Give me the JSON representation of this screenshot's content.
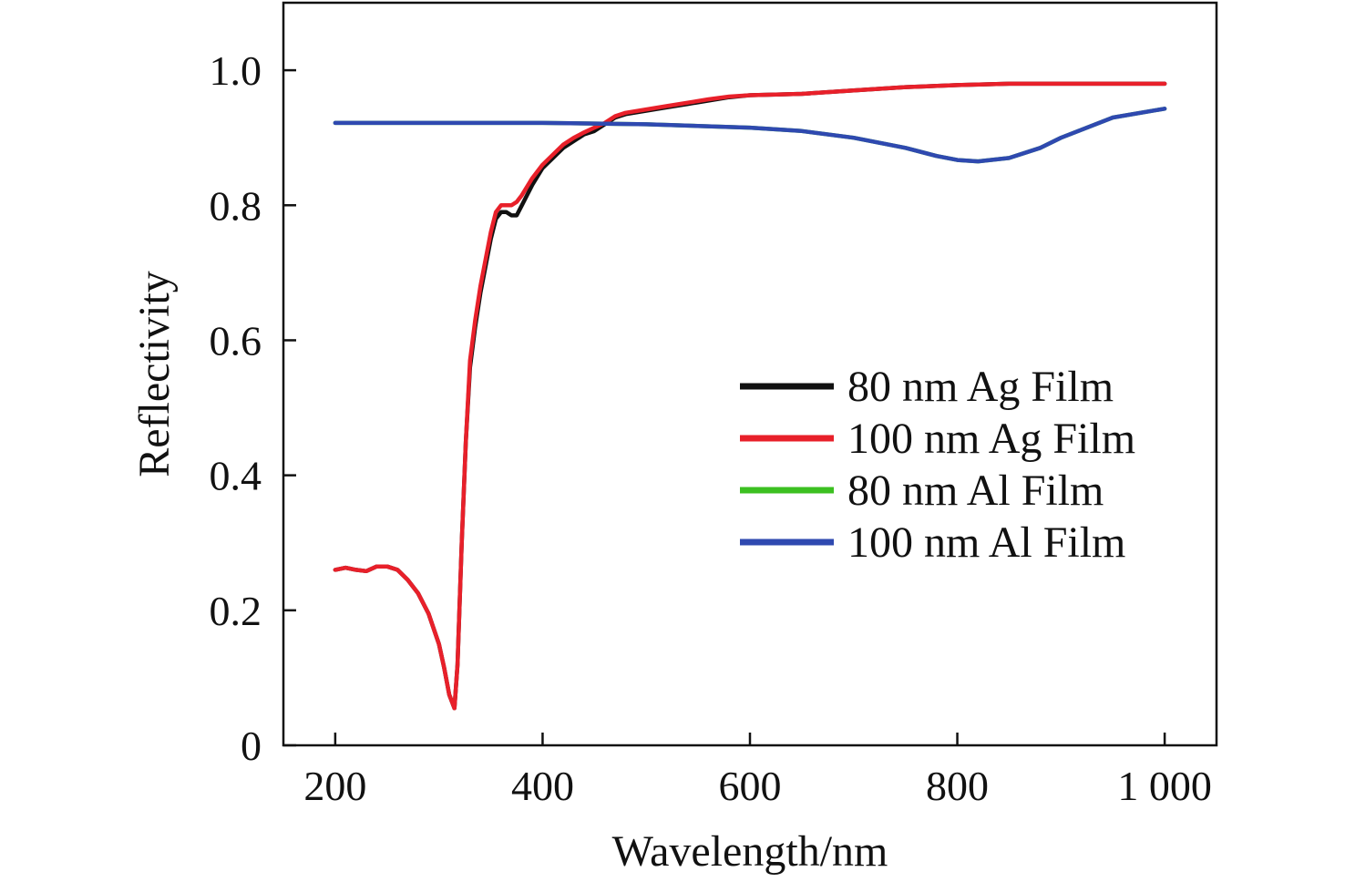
{
  "chart_data": {
    "type": "line",
    "title": "",
    "xlabel": "Wavelength/nm",
    "ylabel": "Reflectivity",
    "xlim": [
      150,
      1050
    ],
    "ylim": [
      0,
      1.1
    ],
    "xticks": [
      200,
      400,
      600,
      800,
      1000
    ],
    "xtick_labels": [
      "200",
      "400",
      "600",
      "800",
      "1 000"
    ],
    "yticks": [
      0,
      0.2,
      0.4,
      0.6,
      0.8,
      1.0
    ],
    "ytick_labels": [
      "0",
      "0.2",
      "0.4",
      "0.6",
      "0.8",
      "1.0"
    ],
    "grid": false,
    "legend_position": "center-right",
    "series": [
      {
        "name": "80 nm Ag Film",
        "color": "#111111",
        "x": [
          200,
          210,
          220,
          230,
          240,
          250,
          260,
          270,
          280,
          290,
          300,
          305,
          310,
          315,
          318,
          322,
          326,
          330,
          335,
          340,
          345,
          350,
          355,
          360,
          365,
          370,
          375,
          380,
          390,
          400,
          410,
          420,
          430,
          440,
          450,
          460,
          470,
          480,
          500,
          520,
          540,
          560,
          580,
          600,
          650,
          700,
          750,
          800,
          850,
          900,
          950,
          1000
        ],
        "y": [
          0.26,
          0.263,
          0.26,
          0.258,
          0.265,
          0.265,
          0.26,
          0.245,
          0.225,
          0.195,
          0.15,
          0.115,
          0.075,
          0.055,
          0.12,
          0.3,
          0.45,
          0.56,
          0.62,
          0.67,
          0.71,
          0.75,
          0.78,
          0.79,
          0.79,
          0.785,
          0.785,
          0.8,
          0.83,
          0.855,
          0.87,
          0.885,
          0.895,
          0.905,
          0.91,
          0.92,
          0.93,
          0.935,
          0.94,
          0.945,
          0.95,
          0.955,
          0.96,
          0.963,
          0.965,
          0.97,
          0.975,
          0.978,
          0.98,
          0.98,
          0.98,
          0.98
        ]
      },
      {
        "name": "100 nm Ag Film",
        "color": "#e8202a",
        "x": [
          200,
          210,
          220,
          230,
          240,
          250,
          260,
          270,
          280,
          290,
          300,
          305,
          310,
          315,
          318,
          322,
          326,
          330,
          335,
          340,
          345,
          350,
          355,
          360,
          365,
          370,
          375,
          380,
          390,
          400,
          410,
          420,
          430,
          440,
          450,
          460,
          470,
          480,
          500,
          520,
          540,
          560,
          580,
          600,
          650,
          700,
          750,
          800,
          850,
          900,
          950,
          1000
        ],
        "y": [
          0.26,
          0.263,
          0.26,
          0.258,
          0.265,
          0.265,
          0.26,
          0.245,
          0.225,
          0.195,
          0.15,
          0.115,
          0.075,
          0.055,
          0.12,
          0.3,
          0.45,
          0.57,
          0.63,
          0.68,
          0.72,
          0.76,
          0.79,
          0.8,
          0.8,
          0.8,
          0.805,
          0.815,
          0.84,
          0.86,
          0.875,
          0.89,
          0.9,
          0.908,
          0.915,
          0.922,
          0.932,
          0.937,
          0.942,
          0.947,
          0.952,
          0.957,
          0.961,
          0.963,
          0.965,
          0.97,
          0.975,
          0.978,
          0.98,
          0.98,
          0.98,
          0.98
        ]
      },
      {
        "name": "80 nm Al Film",
        "color": "#3cc021",
        "x": [
          200,
          300,
          400,
          500,
          600,
          650,
          700,
          750,
          780,
          800,
          820,
          850,
          880,
          900,
          950,
          1000
        ],
        "y": [
          0.922,
          0.922,
          0.922,
          0.92,
          0.915,
          0.91,
          0.9,
          0.885,
          0.873,
          0.867,
          0.865,
          0.87,
          0.885,
          0.9,
          0.93,
          0.943
        ]
      },
      {
        "name": "100 nm Al Film",
        "color": "#2f49b0",
        "x": [
          200,
          300,
          400,
          500,
          600,
          650,
          700,
          750,
          780,
          800,
          820,
          850,
          880,
          900,
          950,
          1000
        ],
        "y": [
          0.922,
          0.922,
          0.922,
          0.92,
          0.915,
          0.91,
          0.9,
          0.885,
          0.873,
          0.867,
          0.865,
          0.87,
          0.885,
          0.9,
          0.93,
          0.943
        ]
      }
    ]
  }
}
